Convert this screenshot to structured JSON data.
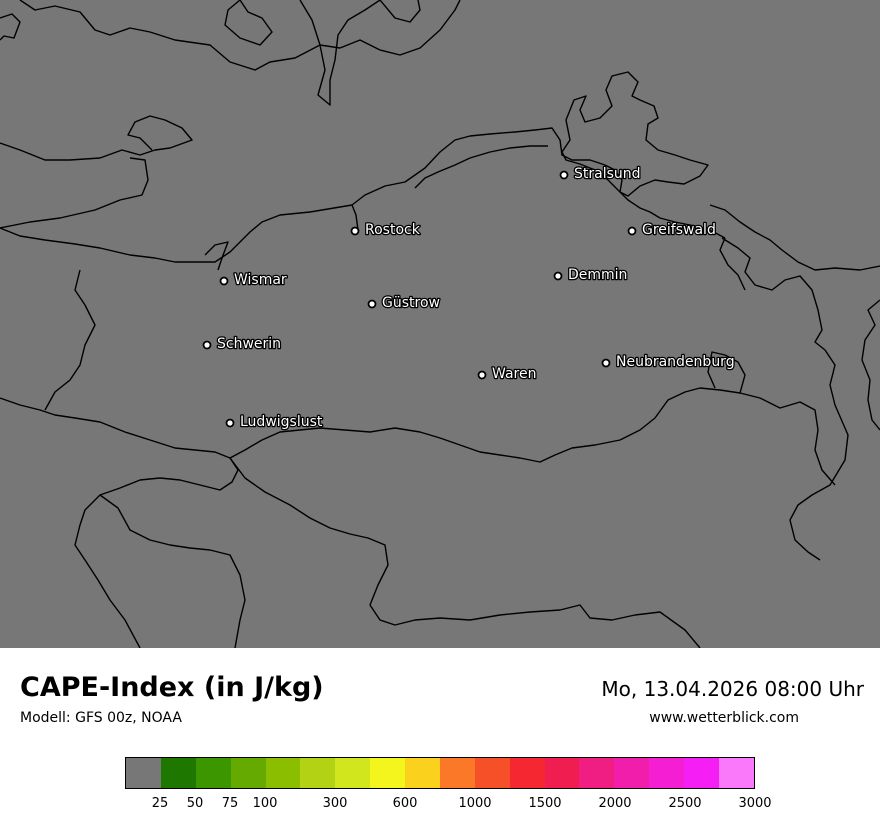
{
  "title": "CAPE-Index (in J/kg)",
  "model": "Modell: GFS 00z, NOAA",
  "datetime": "Mo, 13.04.2026 08:00 Uhr",
  "website": "www.wetterblick.com",
  "map": {
    "background": "#777777",
    "coastline_color": "#000000",
    "cities": [
      {
        "name": "Stralsund"
      },
      {
        "name": "Rostock"
      },
      {
        "name": "Greifswald"
      },
      {
        "name": "Wismar"
      },
      {
        "name": "Demmin"
      },
      {
        "name": "Güstrow"
      },
      {
        "name": "Schwerin"
      },
      {
        "name": "Neubrandenburg"
      },
      {
        "name": "Waren"
      },
      {
        "name": "Ludwigslust"
      }
    ]
  },
  "legend": {
    "colors": [
      "#777777",
      "#1e7800",
      "#3c9600",
      "#64aa00",
      "#8cbe00",
      "#b4d214",
      "#d2e61e",
      "#f5f51e",
      "#fad21e",
      "#fa7828",
      "#f55028",
      "#f52832",
      "#f01e50",
      "#f01e82",
      "#f01eaa",
      "#f51ed2",
      "#f51ef5",
      "#fa78fa"
    ],
    "ticks": [
      "25",
      "50",
      "75",
      "100",
      "300",
      "600",
      "1000",
      "1500",
      "2000",
      "2500",
      "3000"
    ]
  }
}
